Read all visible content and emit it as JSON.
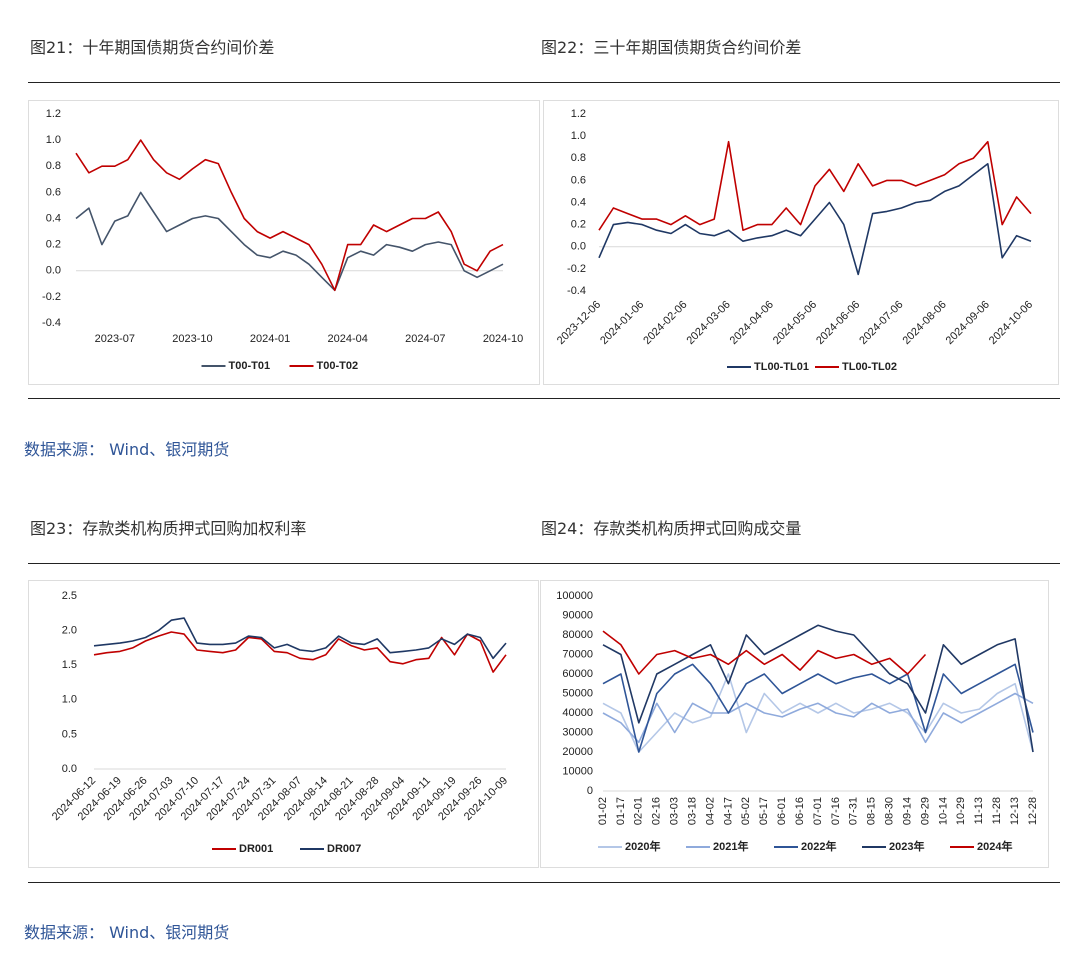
{
  "captions": [
    "图21：十年期国债期货合约间价差",
    "图22：三十年期国债期货合约间价差",
    "图23：存款类机构质押式回购加权利率",
    "图24：存款类机构质押式回购成交量"
  ],
  "sources": [
    "数据来源： Wind、银河期货",
    "数据来源： Wind、银河期货"
  ],
  "chart_data": [
    {
      "type": "line",
      "legend": "bottom",
      "categories": [
        null,
        null,
        null,
        "2023-07",
        null,
        null,
        null,
        null,
        null,
        "2023-10",
        null,
        null,
        null,
        null,
        null,
        "2024-01",
        null,
        null,
        null,
        null,
        null,
        "2024-04",
        null,
        null,
        null,
        null,
        null,
        "2024-07",
        null,
        null,
        null,
        null,
        null,
        "2024-10"
      ],
      "series": [
        {
          "name": "T00-T01",
          "color": "#44546a",
          "values": [
            0.4,
            0.48,
            0.2,
            0.38,
            0.42,
            0.6,
            0.45,
            0.3,
            0.35,
            0.4,
            0.42,
            0.4,
            0.3,
            0.2,
            0.12,
            0.1,
            0.15,
            0.12,
            0.05,
            -0.05,
            -0.15,
            0.1,
            0.15,
            0.12,
            0.2,
            0.18,
            0.15,
            0.2,
            0.22,
            0.2,
            0.0,
            -0.05,
            0.0,
            0.05
          ]
        },
        {
          "name": "T00-T02",
          "color": "#c00000",
          "values": [
            0.9,
            0.75,
            0.8,
            0.8,
            0.85,
            1.0,
            0.85,
            0.75,
            0.7,
            0.78,
            0.85,
            0.82,
            0.6,
            0.4,
            0.3,
            0.25,
            0.3,
            0.25,
            0.2,
            0.05,
            -0.15,
            0.2,
            0.2,
            0.35,
            0.3,
            0.35,
            0.4,
            0.4,
            0.45,
            0.3,
            0.05,
            0.0,
            0.15,
            0.2
          ]
        }
      ],
      "ylim": [
        -0.4,
        1.2
      ],
      "yticks": [
        -0.4,
        -0.2,
        {
          "value": 0,
          "label": "0.0"
        },
        0.2,
        0.4,
        0.6,
        0.8,
        {
          "value": 1,
          "label": "1.0"
        },
        1.2
      ]
    },
    {
      "type": "line",
      "legend": "bottom",
      "categories": [
        "2023-12-06",
        null,
        null,
        "2024-01-06",
        null,
        null,
        "2024-02-06",
        null,
        null,
        "2024-03-06",
        null,
        null,
        "2024-04-06",
        null,
        null,
        "2024-05-06",
        null,
        null,
        "2024-06-06",
        null,
        null,
        "2024-07-06",
        null,
        null,
        "2024-08-06",
        null,
        null,
        "2024-09-06",
        null,
        null,
        "2024-10-06"
      ],
      "series": [
        {
          "name": "TL00-TL01",
          "color": "#1f3864",
          "values": [
            -0.1,
            0.2,
            0.22,
            0.2,
            0.15,
            0.12,
            0.2,
            0.12,
            0.1,
            0.15,
            0.05,
            0.08,
            0.1,
            0.15,
            0.1,
            0.25,
            0.4,
            0.2,
            -0.25,
            0.3,
            0.32,
            0.35,
            0.4,
            0.42,
            0.5,
            0.55,
            0.65,
            0.75,
            -0.1,
            0.1,
            0.05
          ]
        },
        {
          "name": "TL00-TL02",
          "color": "#c00000",
          "values": [
            0.15,
            0.35,
            0.3,
            0.25,
            0.25,
            0.2,
            0.28,
            0.2,
            0.25,
            0.95,
            0.15,
            0.2,
            0.2,
            0.35,
            0.2,
            0.55,
            0.7,
            0.5,
            0.75,
            0.55,
            0.6,
            0.6,
            0.55,
            0.6,
            0.65,
            0.75,
            0.8,
            0.95,
            0.2,
            0.45,
            0.3
          ]
        }
      ],
      "ylim": [
        -0.4,
        1.2
      ],
      "yticks": [
        -0.4,
        -0.2,
        {
          "value": 0,
          "label": "0.0"
        },
        0.2,
        0.4,
        0.6,
        0.8,
        {
          "value": 1,
          "label": "1.0"
        },
        1.2
      ]
    },
    {
      "type": "line",
      "legend": "bottom",
      "categories": [
        "2024-06-12",
        null,
        "2024-06-19",
        null,
        "2024-06-26",
        null,
        "2024-07-03",
        null,
        "2024-07-10",
        null,
        "2024-07-17",
        null,
        "2024-07-24",
        null,
        "2024-07-31",
        null,
        "2024-08-07",
        null,
        "2024-08-14",
        null,
        "2024-08-21",
        null,
        "2024-08-28",
        null,
        "2024-09-04",
        null,
        "2024-09-11",
        null,
        "2024-09-19",
        null,
        "2024-09-26",
        null,
        "2024-10-09"
      ],
      "series": [
        {
          "name": "DR001",
          "color": "#c00000",
          "values": [
            1.65,
            1.68,
            1.7,
            1.75,
            1.85,
            1.92,
            1.98,
            1.95,
            1.72,
            1.7,
            1.68,
            1.72,
            1.9,
            1.88,
            1.7,
            1.68,
            1.6,
            1.58,
            1.65,
            1.88,
            1.78,
            1.72,
            1.75,
            1.55,
            1.52,
            1.58,
            1.6,
            1.9,
            1.65,
            1.95,
            1.85,
            1.4,
            1.65
          ]
        },
        {
          "name": "DR007",
          "color": "#1f3864",
          "values": [
            1.78,
            1.8,
            1.82,
            1.85,
            1.9,
            2.0,
            2.15,
            2.18,
            1.82,
            1.8,
            1.8,
            1.82,
            1.92,
            1.9,
            1.75,
            1.8,
            1.72,
            1.7,
            1.75,
            1.92,
            1.82,
            1.8,
            1.88,
            1.68,
            1.7,
            1.72,
            1.75,
            1.88,
            1.8,
            1.95,
            1.9,
            1.6,
            1.82
          ]
        }
      ],
      "ylim": [
        0,
        2.5
      ],
      "yticks": [
        {
          "value": 0,
          "label": "0.0"
        },
        0.5,
        {
          "value": 1,
          "label": "1.0"
        },
        1.5,
        {
          "value": 2,
          "label": "2.0"
        },
        2.5
      ]
    },
    {
      "type": "line",
      "legend": "bottom",
      "categories": [
        "01-02",
        "01-17",
        "02-01",
        "02-16",
        "03-03",
        "03-18",
        "04-02",
        "04-17",
        "05-02",
        "05-17",
        "06-01",
        "06-16",
        "07-01",
        "07-16",
        "07-31",
        "08-15",
        "08-30",
        "09-14",
        "09-29",
        "10-14",
        "10-29",
        "11-13",
        "11-28",
        "12-13",
        "12-28"
      ],
      "series": [
        {
          "name": "2020年",
          "color": "#b4c7e7",
          "values": [
            45000,
            40000,
            20000,
            30000,
            40000,
            35000,
            38000,
            60000,
            30000,
            50000,
            40000,
            45000,
            40000,
            45000,
            40000,
            42000,
            45000,
            40000,
            30000,
            45000,
            40000,
            42000,
            50000,
            55000,
            20000
          ]
        },
        {
          "name": "2021年",
          "color": "#8faadc",
          "values": [
            40000,
            35000,
            25000,
            45000,
            30000,
            45000,
            40000,
            40000,
            45000,
            40000,
            38000,
            42000,
            45000,
            40000,
            38000,
            45000,
            40000,
            42000,
            25000,
            40000,
            35000,
            40000,
            45000,
            50000,
            45000
          ]
        },
        {
          "name": "2022年",
          "color": "#2f5597",
          "values": [
            55000,
            60000,
            20000,
            50000,
            60000,
            65000,
            55000,
            40000,
            55000,
            60000,
            50000,
            55000,
            60000,
            55000,
            58000,
            60000,
            55000,
            60000,
            30000,
            60000,
            50000,
            55000,
            60000,
            65000,
            30000
          ]
        },
        {
          "name": "2023年",
          "color": "#203864",
          "values": [
            75000,
            70000,
            35000,
            60000,
            65000,
            70000,
            75000,
            55000,
            80000,
            70000,
            75000,
            80000,
            85000,
            82000,
            80000,
            70000,
            60000,
            55000,
            40000,
            75000,
            65000,
            70000,
            75000,
            78000,
            20000
          ]
        },
        {
          "name": "2024年",
          "color": "#c00000",
          "values": [
            82000,
            75000,
            60000,
            70000,
            72000,
            68000,
            70000,
            65000,
            72000,
            65000,
            70000,
            62000,
            72000,
            68000,
            70000,
            65000,
            68000,
            60000,
            70000,
            null,
            null,
            null,
            null,
            null,
            null
          ]
        }
      ],
      "ylim": [
        0,
        100000
      ],
      "yticks": [
        0,
        10000,
        20000,
        30000,
        40000,
        50000,
        60000,
        70000,
        80000,
        90000,
        100000
      ]
    }
  ]
}
